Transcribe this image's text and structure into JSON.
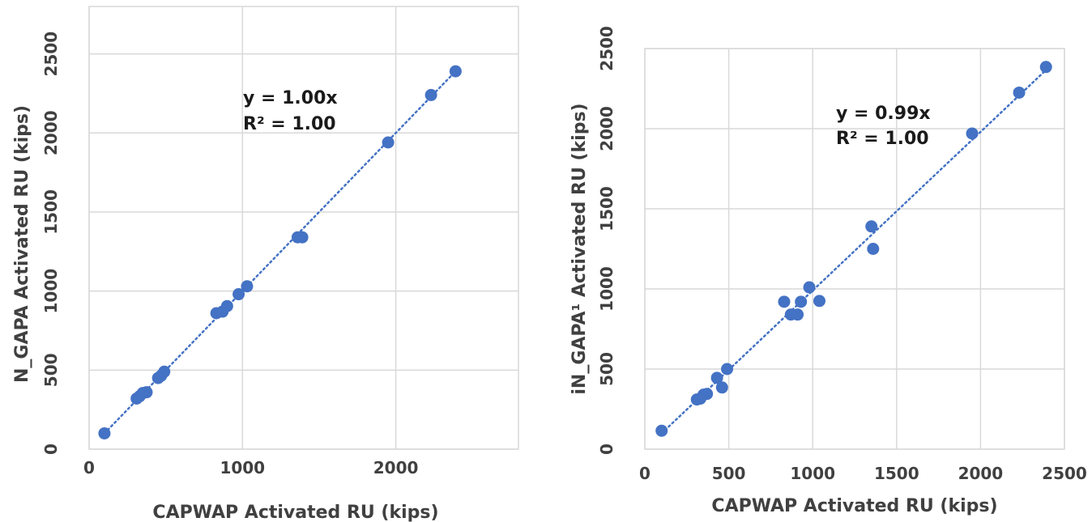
{
  "chart_data": [
    {
      "type": "scatter",
      "xlabel": "CAPWAP Activated RU (kips)",
      "ylabel": "N_GAPA Activated RU (kips)",
      "xlim": [
        0,
        2800
      ],
      "ylim": [
        0,
        2800
      ],
      "x_ticks": [
        0,
        1000,
        2000
      ],
      "y_ticks": [
        0,
        500,
        1000,
        1500,
        2000,
        2500
      ],
      "grid": true,
      "trendline": {
        "type": "linear",
        "slope": 1.0,
        "style": "dotted"
      },
      "annotations": [
        "y = 1.00x",
        "R² = 1.00"
      ],
      "color": "#4472C4",
      "series": [
        {
          "points": [
            [
              100,
              100
            ],
            [
              310,
              320
            ],
            [
              330,
              335
            ],
            [
              350,
              355
            ],
            [
              375,
              360
            ],
            [
              450,
              450
            ],
            [
              470,
              465
            ],
            [
              490,
              490
            ],
            [
              830,
              860
            ],
            [
              870,
              870
            ],
            [
              900,
              905
            ],
            [
              975,
              980
            ],
            [
              1030,
              1030
            ],
            [
              1360,
              1340
            ],
            [
              1390,
              1340
            ],
            [
              1950,
              1940
            ],
            [
              2230,
              2240
            ],
            [
              2390,
              2390
            ]
          ]
        }
      ]
    },
    {
      "type": "scatter",
      "xlabel": "CAPWAP Activated RU (kips)",
      "ylabel": "iN_GAPA¹ Activated RU (kips)",
      "xlim": [
        0,
        2500
      ],
      "ylim": [
        0,
        2500
      ],
      "x_ticks": [
        0,
        500,
        1000,
        1500,
        2000,
        2500
      ],
      "y_ticks": [
        0,
        500,
        1000,
        1500,
        2000,
        2500
      ],
      "grid": true,
      "trendline": {
        "type": "linear",
        "slope": 0.99,
        "style": "dotted"
      },
      "annotations": [
        "y = 0.99x",
        "R² = 1.00"
      ],
      "color": "#4472C4",
      "series": [
        {
          "points": [
            [
              100,
              115
            ],
            [
              310,
              310
            ],
            [
              330,
              315
            ],
            [
              350,
              340
            ],
            [
              370,
              345
            ],
            [
              430,
              445
            ],
            [
              460,
              385
            ],
            [
              490,
              500
            ],
            [
              830,
              920
            ],
            [
              870,
              840
            ],
            [
              910,
              840
            ],
            [
              930,
              920
            ],
            [
              980,
              1010
            ],
            [
              1040,
              925
            ],
            [
              1350,
              1390
            ],
            [
              1360,
              1250
            ],
            [
              1950,
              1970
            ],
            [
              2230,
              2225
            ],
            [
              2390,
              2385
            ]
          ]
        }
      ]
    }
  ]
}
